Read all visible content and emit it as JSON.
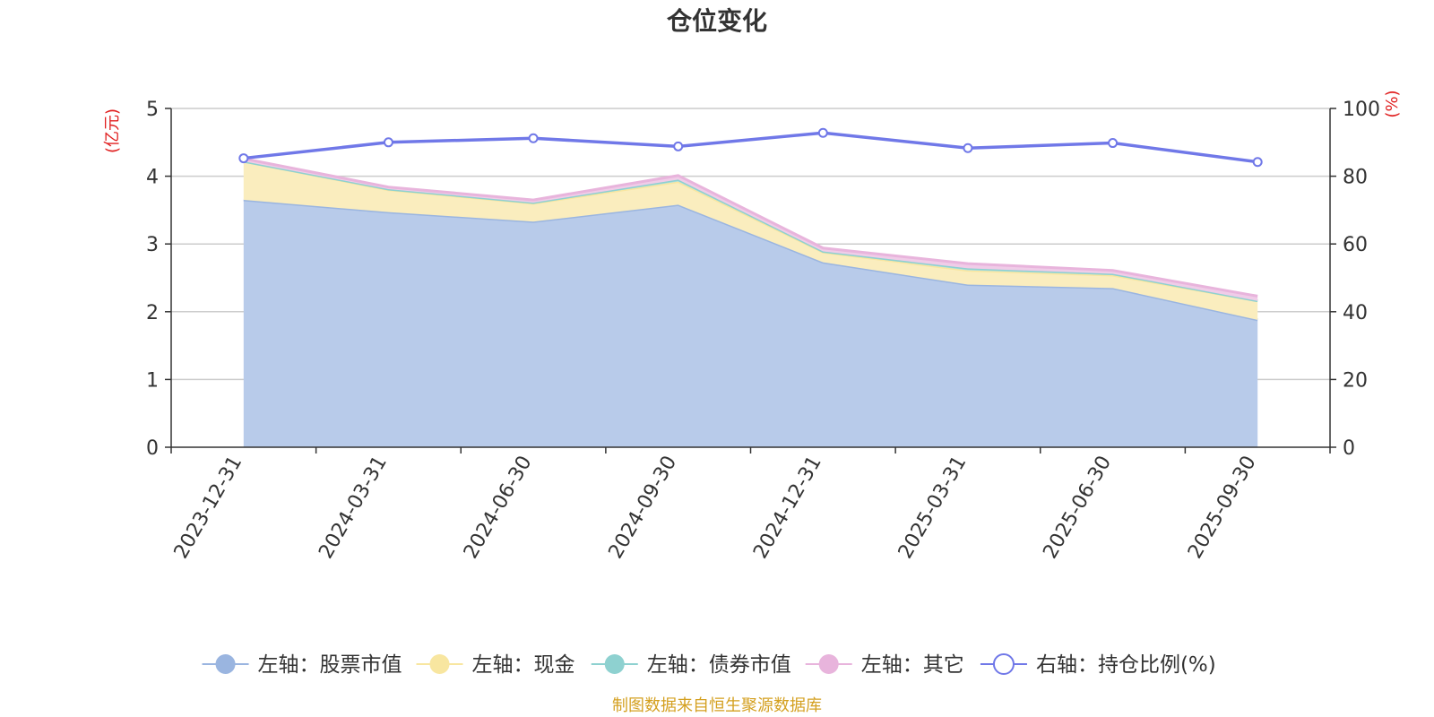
{
  "chart_data": {
    "type": "area",
    "title": "仓位变化",
    "categories": [
      "2023-12-31",
      "2024-03-31",
      "2024-06-30",
      "2024-09-30",
      "2024-12-31",
      "2025-03-31",
      "2025-06-30",
      "2025-09-30"
    ],
    "left_axis": {
      "unit": "(亿元)",
      "ylim": [
        0,
        5
      ],
      "ticks": [
        "0",
        "1",
        "2",
        "3",
        "4",
        "5"
      ]
    },
    "right_axis": {
      "unit": "(%)",
      "ylim": [
        0,
        100
      ],
      "ticks": [
        "0",
        "20",
        "40",
        "60",
        "80",
        "100"
      ]
    },
    "stacked_series": [
      {
        "name": "左轴：股票市值",
        "color": "#9ab5e0",
        "fill": "#b8cbea",
        "values": [
          3.65,
          3.47,
          3.33,
          3.58,
          2.73,
          2.4,
          2.35,
          1.88
        ]
      },
      {
        "name": "左轴：现金",
        "color": "#f8e6a0",
        "fill": "#faedbe",
        "values": [
          0.57,
          0.33,
          0.27,
          0.34,
          0.15,
          0.21,
          0.19,
          0.28
        ]
      },
      {
        "name": "左轴：债券市值",
        "color": "#8ed1d0",
        "fill": "#b3e1e0",
        "values": [
          0.0,
          0.01,
          0.01,
          0.03,
          0.01,
          0.03,
          0.02,
          0.0
        ]
      },
      {
        "name": "左轴：其它",
        "color": "#e8b4dc",
        "fill": "#f0cce8",
        "values": [
          0.04,
          0.03,
          0.04,
          0.06,
          0.05,
          0.07,
          0.05,
          0.07
        ]
      }
    ],
    "line_series": {
      "name": "右轴：持仓比例(%)",
      "color": "#7078e8",
      "values": [
        85.3,
        90.0,
        91.2,
        88.8,
        92.8,
        88.3,
        89.8,
        84.2
      ]
    },
    "grid": true,
    "legend_position": "bottom"
  },
  "source_text": "制图数据来自恒生聚源数据库",
  "colors": {
    "unit_label": "#e02020",
    "source": "#d4a020",
    "axis": "#333333",
    "grid": "#cccccc"
  }
}
